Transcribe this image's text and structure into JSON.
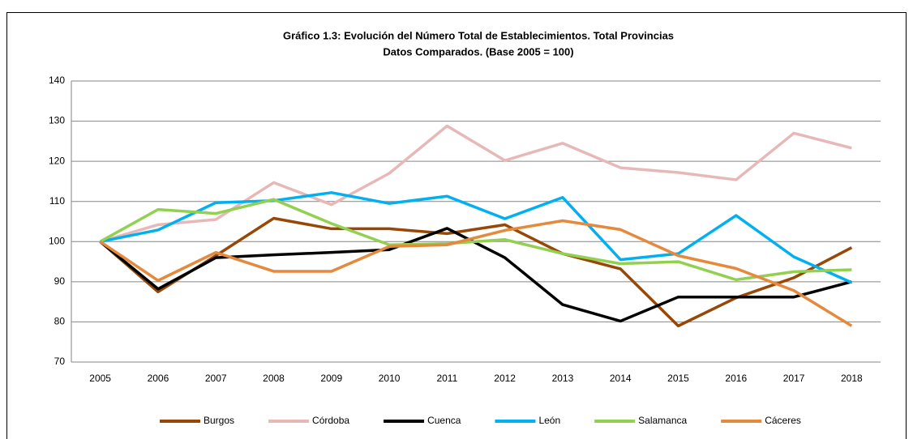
{
  "chart_data": {
    "type": "line",
    "title": "Gráfico 1.3: Evolución del Número Total de Establecimientos. Total Provincias",
    "subtitle": "Datos Comparados. (Base  2005 = 100)",
    "categories": [
      "2005",
      "2006",
      "2007",
      "2008",
      "2009",
      "2010",
      "2011",
      "2012",
      "2013",
      "2014",
      "2015",
      "2016",
      "2017",
      "2018"
    ],
    "ylim": [
      70,
      140
    ],
    "yticks": [
      70,
      80,
      90,
      100,
      110,
      120,
      130,
      140
    ],
    "grid": true,
    "legend": "bottom",
    "series": [
      {
        "name": "Burgos",
        "color": "#974706",
        "values": [
          100,
          87.5,
          96.5,
          105.8,
          103.2,
          103.2,
          102,
          104.2,
          97,
          93.2,
          79,
          86,
          91,
          98.5
        ]
      },
      {
        "name": "Córdoba",
        "color": "#e6b9b8",
        "values": [
          100,
          104.2,
          105.5,
          114.7,
          109.2,
          117,
          128.8,
          120.2,
          124.5,
          118.4,
          117.2,
          115.4,
          127,
          123.3
        ]
      },
      {
        "name": "Cuenca",
        "color": "#000000",
        "values": [
          100,
          88.2,
          96,
          96.7,
          97.3,
          98,
          103.3,
          96,
          84.3,
          80.2,
          86.2,
          86.2,
          86.2,
          90
        ]
      },
      {
        "name": "León",
        "color": "#00b0f0",
        "values": [
          100,
          102.9,
          109.7,
          110.2,
          112.2,
          109.5,
          111.3,
          105.7,
          111,
          95.5,
          97,
          106.5,
          96.2,
          89.8
        ]
      },
      {
        "name": "Salamanca",
        "color": "#92d050",
        "values": [
          100,
          108,
          107,
          110.5,
          104.5,
          99.2,
          99.5,
          100.5,
          97,
          94.5,
          95,
          90.5,
          92.5,
          93
        ]
      },
      {
        "name": "Cáceres",
        "color": "#e5893d",
        "values": [
          100,
          90.3,
          97.3,
          92.6,
          92.6,
          98.8,
          99.2,
          102.8,
          105.2,
          103,
          96.5,
          93.3,
          87.8,
          79
        ]
      }
    ]
  }
}
